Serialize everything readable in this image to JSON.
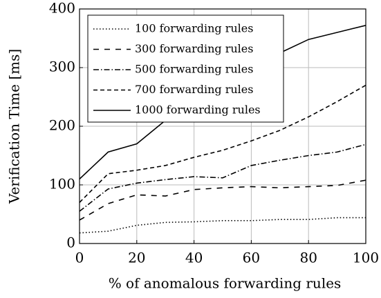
{
  "chart_data": {
    "type": "line",
    "xlabel": "% of anomalous forwarding rules",
    "ylabel": "Verification Time [ms]",
    "x": [
      0,
      10,
      20,
      30,
      40,
      50,
      60,
      70,
      80,
      90,
      100
    ],
    "series": [
      {
        "name": "100 forwarding rules",
        "color": "#000000",
        "style": "dotted",
        "values": [
          18,
          21,
          31,
          36,
          37,
          39,
          39,
          41,
          41,
          44,
          44
        ]
      },
      {
        "name": "300 forwarding rules",
        "color": "#000000",
        "style": "dashed",
        "values": [
          40,
          68,
          83,
          81,
          92,
          95,
          97,
          95,
          97,
          99,
          108
        ]
      },
      {
        "name": "500 forwarding rules",
        "color": "#000000",
        "style": "dashdot",
        "values": [
          55,
          93,
          103,
          109,
          114,
          112,
          133,
          142,
          150,
          156,
          169
        ]
      },
      {
        "name": "700 forwarding rules",
        "color": "#000000",
        "style": "densely-dashed",
        "values": [
          70,
          119,
          125,
          133,
          147,
          159,
          175,
          193,
          216,
          242,
          270
        ]
      },
      {
        "name": "1000 forwarding rules",
        "color": "#000000",
        "style": "solid",
        "values": [
          110,
          156,
          170,
          210,
          245,
          275,
          300,
          325,
          348,
          360,
          372
        ]
      }
    ],
    "xlim": [
      0,
      100
    ],
    "xticks": [
      0,
      20,
      40,
      60,
      80,
      100
    ],
    "ylim": [
      0,
      400
    ],
    "yticks": [
      0,
      100,
      200,
      300,
      400
    ],
    "grid": true,
    "legend": "upper left"
  }
}
